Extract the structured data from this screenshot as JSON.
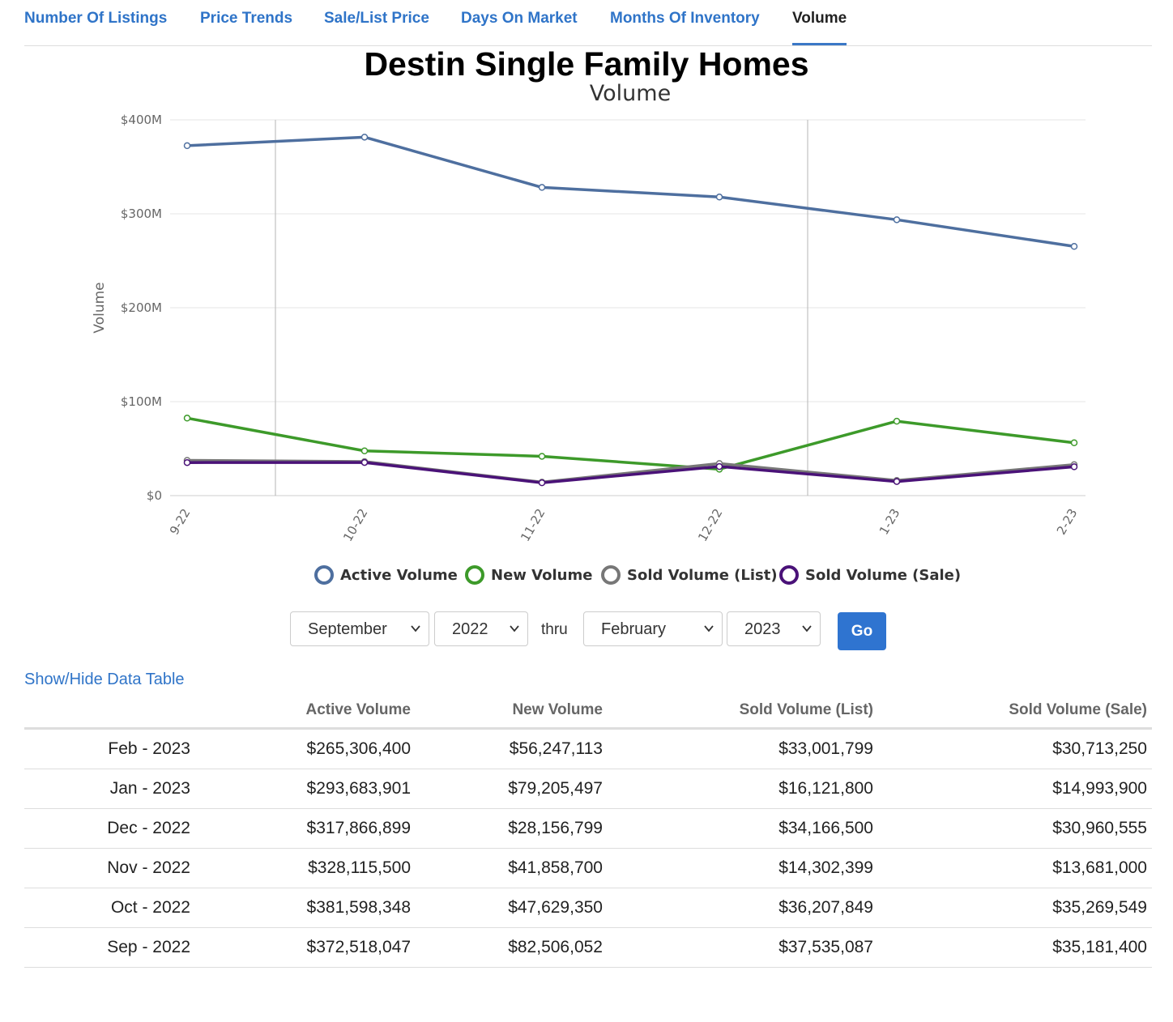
{
  "tabs": [
    {
      "label": "Number Of Listings",
      "active": false
    },
    {
      "label": "Price Trends",
      "active": false
    },
    {
      "label": "Sale/List Price",
      "active": false
    },
    {
      "label": "Days On Market",
      "active": false
    },
    {
      "label": "Months Of Inventory",
      "active": false
    },
    {
      "label": "Volume",
      "active": true
    }
  ],
  "chart_data": {
    "type": "line",
    "title": "Destin Single Family Homes",
    "subtitle": "Volume",
    "ylabel": "Volume",
    "xlabel": "",
    "categories": [
      "9-22",
      "10-22",
      "11-22",
      "12-22",
      "1-23",
      "2-23"
    ],
    "ylim": [
      0,
      400000000
    ],
    "yticks": [
      0,
      100000000,
      200000000,
      300000000,
      400000000
    ],
    "ytick_labels": [
      "$0",
      "$100M",
      "$200M",
      "$300M",
      "$400M"
    ],
    "grid": true,
    "legend_position": "bottom-center",
    "series": [
      {
        "name": "Active Volume",
        "color": "#4e6f9f",
        "values": [
          372518047,
          381598348,
          328115500,
          317866899,
          293683901,
          265306400
        ]
      },
      {
        "name": "New Volume",
        "color": "#3d9a2a",
        "values": [
          82506052,
          47629350,
          41858700,
          28156799,
          79205497,
          56247113
        ]
      },
      {
        "name": "Sold Volume (List)",
        "color": "#777777",
        "values": [
          37535087,
          36207849,
          14302399,
          34166500,
          16121800,
          33001799
        ]
      },
      {
        "name": "Sold Volume (Sale)",
        "color": "#4a1278",
        "values": [
          35181400,
          35269549,
          13681000,
          30960555,
          14993900,
          30713250
        ]
      }
    ]
  },
  "controls": {
    "from_month": "September",
    "from_year": "2022",
    "thru_label": "thru",
    "to_month": "February",
    "to_year": "2023",
    "go_label": "Go"
  },
  "toggle_table_label": "Show/Hide Data Table",
  "table": {
    "headers": [
      "",
      "Active Volume",
      "New Volume",
      "Sold Volume (List)",
      "Sold Volume (Sale)"
    ],
    "rows": [
      [
        "Feb - 2023",
        "$265,306,400",
        "$56,247,113",
        "$33,001,799",
        "$30,713,250"
      ],
      [
        "Jan - 2023",
        "$293,683,901",
        "$79,205,497",
        "$16,121,800",
        "$14,993,900"
      ],
      [
        "Dec - 2022",
        "$317,866,899",
        "$28,156,799",
        "$34,166,500",
        "$30,960,555"
      ],
      [
        "Nov - 2022",
        "$328,115,500",
        "$41,858,700",
        "$14,302,399",
        "$13,681,000"
      ],
      [
        "Oct - 2022",
        "$381,598,348",
        "$47,629,350",
        "$36,207,849",
        "$35,269,549"
      ],
      [
        "Sep - 2022",
        "$372,518,047",
        "$82,506,052",
        "$37,535,087",
        "$35,181,400"
      ]
    ]
  }
}
